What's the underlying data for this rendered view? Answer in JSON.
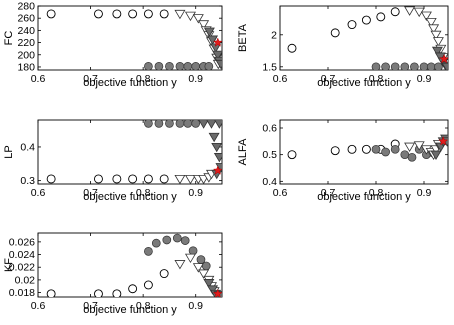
{
  "chart_data": [
    {
      "id": "fc",
      "type": "scatter",
      "ylabel": "FC",
      "xlabel": "objective function y",
      "xlim": [
        0.6,
        0.95
      ],
      "ylim": [
        175,
        280
      ],
      "xticks": [
        0.6,
        0.7,
        0.8,
        0.9
      ],
      "xtick_labels": [
        "0.6",
        "0.7",
        "0.8",
        "0.9"
      ],
      "yticks": [
        180,
        200,
        220,
        240,
        260,
        280
      ],
      "ytick_labels": [
        "180",
        "200",
        "220",
        "240",
        "260",
        "280"
      ],
      "series": [
        {
          "marker": "circle-open",
          "points": [
            [
              0.625,
              267
            ],
            [
              0.715,
              267
            ],
            [
              0.75,
              267
            ],
            [
              0.78,
              267
            ],
            [
              0.81,
              267
            ],
            [
              0.84,
              267
            ]
          ]
        },
        {
          "marker": "circle-filled",
          "points": [
            [
              0.81,
              181
            ],
            [
              0.83,
              181
            ],
            [
              0.85,
              181
            ],
            [
              0.87,
              181
            ],
            [
              0.885,
              181
            ],
            [
              0.9,
              181
            ],
            [
              0.915,
              181
            ],
            [
              0.925,
              181
            ]
          ]
        },
        {
          "marker": "triangle-open",
          "points": [
            [
              0.87,
              267
            ],
            [
              0.89,
              264
            ],
            [
              0.905,
              260
            ],
            [
              0.915,
              250
            ],
            [
              0.92,
              240
            ],
            [
              0.925,
              232
            ],
            [
              0.93,
              222
            ],
            [
              0.935,
              210
            ],
            [
              0.94,
              195
            ],
            [
              0.943,
              185
            ]
          ]
        },
        {
          "marker": "triangle-filled",
          "points": [
            [
              0.926,
              238
            ],
            [
              0.932,
              225
            ],
            [
              0.938,
              212
            ],
            [
              0.942,
              200
            ],
            [
              0.945,
              190
            ],
            [
              0.948,
              185
            ]
          ]
        },
        {
          "marker": "star-red",
          "points": [
            [
              0.942,
              220
            ]
          ]
        }
      ]
    },
    {
      "id": "beta",
      "type": "scatter",
      "ylabel": "BETA",
      "xlabel": "objective function y",
      "xlim": [
        0.6,
        0.95
      ],
      "ylim": [
        1.45,
        2.45
      ],
      "xticks": [
        0.6,
        0.7,
        0.8,
        0.9
      ],
      "xtick_labels": [
        "0.6",
        "0.7",
        "0.8",
        "0.9"
      ],
      "yticks": [
        1.5,
        2.0
      ],
      "ytick_labels": [
        "1.5",
        "2"
      ],
      "series": [
        {
          "marker": "circle-open",
          "points": [
            [
              0.625,
              1.79
            ],
            [
              0.715,
              2.03
            ],
            [
              0.75,
              2.16
            ],
            [
              0.78,
              2.23
            ],
            [
              0.81,
              2.28
            ],
            [
              0.84,
              2.36
            ]
          ]
        },
        {
          "marker": "circle-filled",
          "points": [
            [
              0.8,
              1.5
            ],
            [
              0.82,
              1.5
            ],
            [
              0.84,
              1.5
            ],
            [
              0.86,
              1.5
            ],
            [
              0.88,
              1.5
            ],
            [
              0.9,
              1.5
            ],
            [
              0.915,
              1.5
            ],
            [
              0.93,
              1.5
            ]
          ]
        },
        {
          "marker": "triangle-open",
          "points": [
            [
              0.87,
              2.38
            ],
            [
              0.89,
              2.36
            ],
            [
              0.905,
              2.3
            ],
            [
              0.915,
              2.2
            ],
            [
              0.92,
              2.1
            ],
            [
              0.925,
              2.0
            ],
            [
              0.93,
              1.9
            ],
            [
              0.935,
              1.78
            ],
            [
              0.94,
              1.65
            ],
            [
              0.945,
              1.55
            ]
          ]
        },
        {
          "marker": "triangle-filled",
          "points": [
            [
              0.928,
              1.75
            ],
            [
              0.934,
              1.66
            ],
            [
              0.94,
              1.58
            ],
            [
              0.945,
              1.52
            ],
            [
              0.948,
              1.5
            ]
          ]
        },
        {
          "marker": "star-red",
          "points": [
            [
              0.942,
              1.62
            ]
          ]
        }
      ]
    },
    {
      "id": "lp",
      "type": "scatter",
      "ylabel": "LP",
      "xlabel": "objective function y",
      "xlim": [
        0.6,
        0.95
      ],
      "ylim": [
        0.29,
        0.48
      ],
      "xticks": [
        0.6,
        0.7,
        0.8,
        0.9
      ],
      "xtick_labels": [
        "0.6",
        "0.7",
        "0.8",
        "0.9"
      ],
      "yticks": [
        0.3,
        0.4
      ],
      "ytick_labels": [
        "0.3",
        "0.4"
      ],
      "series": [
        {
          "marker": "circle-open",
          "points": [
            [
              0.625,
              0.305
            ],
            [
              0.715,
              0.305
            ],
            [
              0.75,
              0.305
            ],
            [
              0.78,
              0.305
            ],
            [
              0.81,
              0.305
            ],
            [
              0.84,
              0.305
            ]
          ]
        },
        {
          "marker": "circle-filled",
          "points": [
            [
              0.81,
              0.47
            ],
            [
              0.83,
              0.47
            ],
            [
              0.85,
              0.47
            ],
            [
              0.87,
              0.47
            ],
            [
              0.885,
              0.47
            ],
            [
              0.9,
              0.47
            ]
          ]
        },
        {
          "marker": "triangle-open",
          "points": [
            [
              0.87,
              0.305
            ],
            [
              0.89,
              0.305
            ],
            [
              0.905,
              0.305
            ],
            [
              0.915,
              0.305
            ],
            [
              0.925,
              0.31
            ],
            [
              0.93,
              0.32
            ]
          ]
        },
        {
          "marker": "triangle-filled",
          "points": [
            [
              0.915,
              0.47
            ],
            [
              0.93,
              0.47
            ],
            [
              0.945,
              0.47
            ],
            [
              0.935,
              0.43
            ],
            [
              0.94,
              0.4
            ],
            [
              0.945,
              0.37
            ],
            [
              0.948,
              0.34
            ],
            [
              0.94,
              0.32
            ]
          ]
        },
        {
          "marker": "star-red",
          "points": [
            [
              0.942,
              0.33
            ]
          ]
        }
      ]
    },
    {
      "id": "alfa",
      "type": "scatter",
      "ylabel": "ALFA",
      "xlabel": "objective function y",
      "xlim": [
        0.6,
        0.95
      ],
      "ylim": [
        0.39,
        0.63
      ],
      "xticks": [
        0.6,
        0.7,
        0.8,
        0.9
      ],
      "xtick_labels": [
        "0.6",
        "0.7",
        "0.8",
        "0.9"
      ],
      "yticks": [
        0.4,
        0.5,
        0.6
      ],
      "ytick_labels": [
        "0.4",
        "0.5",
        "0.6"
      ],
      "series": [
        {
          "marker": "circle-open",
          "points": [
            [
              0.625,
              0.5
            ],
            [
              0.715,
              0.515
            ],
            [
              0.75,
              0.52
            ],
            [
              0.78,
              0.52
            ],
            [
              0.81,
              0.52
            ],
            [
              0.84,
              0.54
            ]
          ]
        },
        {
          "marker": "circle-filled",
          "points": [
            [
              0.8,
              0.52
            ],
            [
              0.82,
              0.51
            ],
            [
              0.84,
              0.52
            ],
            [
              0.86,
              0.5
            ],
            [
              0.875,
              0.49
            ],
            [
              0.89,
              0.52
            ],
            [
              0.905,
              0.5
            ],
            [
              0.92,
              0.51
            ]
          ]
        },
        {
          "marker": "triangle-open",
          "points": [
            [
              0.87,
              0.53
            ],
            [
              0.89,
              0.535
            ],
            [
              0.905,
              0.52
            ],
            [
              0.915,
              0.51
            ],
            [
              0.92,
              0.5
            ],
            [
              0.925,
              0.52
            ],
            [
              0.93,
              0.54
            ]
          ]
        },
        {
          "marker": "triangle-filled",
          "points": [
            [
              0.925,
              0.5
            ],
            [
              0.935,
              0.53
            ],
            [
              0.94,
              0.55
            ],
            [
              0.945,
              0.56
            ],
            [
              0.948,
              0.55
            ]
          ]
        },
        {
          "marker": "star-red",
          "points": [
            [
              0.94,
              0.55
            ]
          ]
        }
      ]
    },
    {
      "id": "kf",
      "type": "scatter",
      "ylabel": "KF",
      "xlabel": "objective function y",
      "xlim": [
        0.6,
        0.95
      ],
      "ylim": [
        0.0173,
        0.0274
      ],
      "xticks": [
        0.6,
        0.7,
        0.8,
        0.9
      ],
      "xtick_labels": [
        "0.6",
        "0.7",
        "0.8",
        "0.9"
      ],
      "yticks": [
        0.018,
        0.02,
        0.022,
        0.024,
        0.026
      ],
      "ytick_labels": [
        "0.018",
        "0.02",
        "0.022",
        "0.024",
        "0.026"
      ],
      "series": [
        {
          "marker": "circle-open",
          "points": [
            [
              0.625,
              0.0178
            ],
            [
              0.715,
              0.0178
            ],
            [
              0.75,
              0.0178
            ],
            [
              0.78,
              0.0186
            ],
            [
              0.81,
              0.0192
            ],
            [
              0.84,
              0.021
            ]
          ]
        },
        {
          "marker": "circle-filled",
          "points": [
            [
              0.81,
              0.0245
            ],
            [
              0.825,
              0.0258
            ],
            [
              0.845,
              0.0263
            ],
            [
              0.865,
              0.0266
            ],
            [
              0.88,
              0.0262
            ],
            [
              0.895,
              0.0246
            ],
            [
              0.91,
              0.0232
            ],
            [
              0.92,
              0.0222
            ]
          ]
        },
        {
          "marker": "triangle-open",
          "points": [
            [
              0.87,
              0.0225
            ],
            [
              0.89,
              0.0235
            ],
            [
              0.905,
              0.022
            ],
            [
              0.915,
              0.021
            ],
            [
              0.925,
              0.02
            ],
            [
              0.93,
              0.019
            ],
            [
              0.935,
              0.0182
            ]
          ]
        },
        {
          "marker": "triangle-filled",
          "points": [
            [
              0.925,
              0.0195
            ],
            [
              0.932,
              0.0185
            ],
            [
              0.938,
              0.0178
            ],
            [
              0.944,
              0.0176
            ],
            [
              0.948,
              0.0175
            ]
          ]
        },
        {
          "marker": "star-red",
          "points": [
            [
              0.942,
              0.0178
            ]
          ]
        }
      ]
    }
  ]
}
